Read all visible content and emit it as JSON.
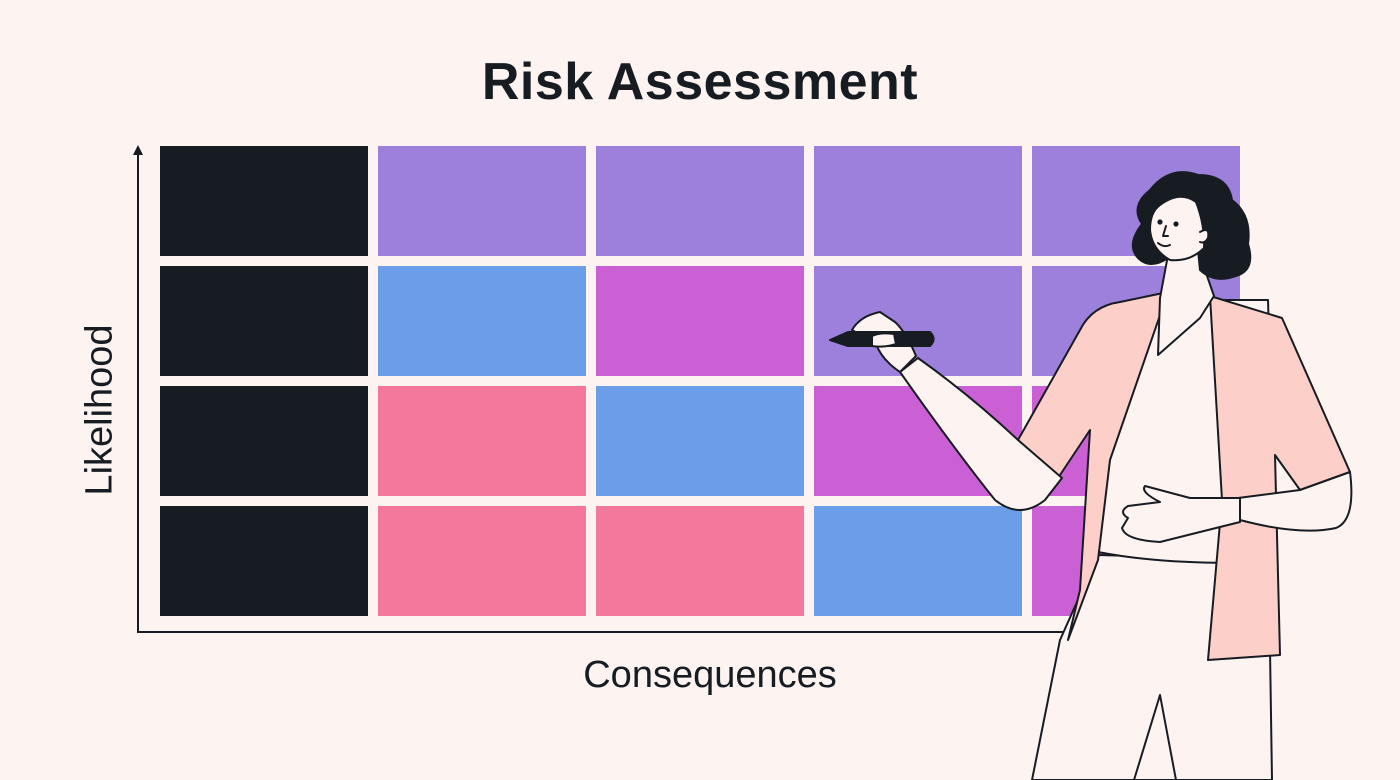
{
  "title": "Risk Assessment",
  "y_axis_label": "Likelihood",
  "x_axis_label": "Consequences",
  "colors": {
    "dark": "#161c22",
    "purple": "#9d7fdc",
    "blue": "#6b9de8",
    "magenta": "#cb60d4",
    "pink": "#f4789c",
    "skin": "#fdf3f1",
    "cardigan": "#fcd0c9"
  },
  "matrix": {
    "rows": 4,
    "columns": 5,
    "cells": [
      [
        "dark",
        "purple",
        "purple",
        "purple",
        "purple"
      ],
      [
        "dark",
        "blue",
        "magenta",
        "purple",
        "purple"
      ],
      [
        "dark",
        "pink",
        "blue",
        "magenta",
        "magenta"
      ],
      [
        "dark",
        "pink",
        "pink",
        "blue",
        "magenta"
      ]
    ]
  }
}
